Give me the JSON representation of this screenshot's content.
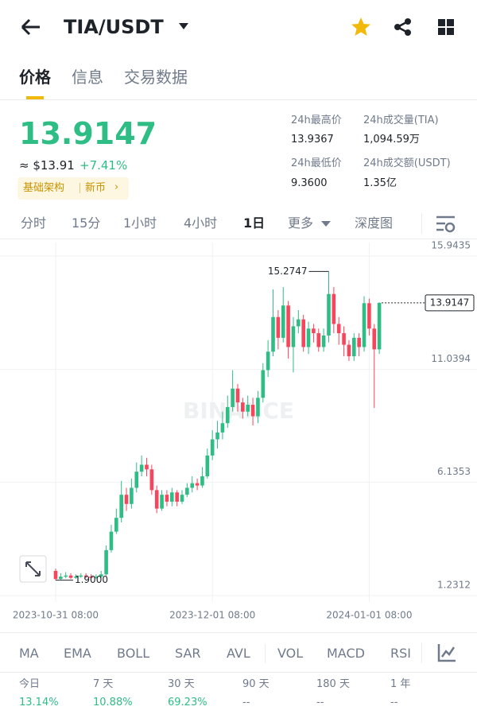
{
  "header": {
    "pair": "TIA/USDT"
  },
  "tabs": [
    "价格",
    "信息",
    "交易数据"
  ],
  "price": {
    "last": "13.9147",
    "approx": "≈ $13.91",
    "change": "+7.41%",
    "tags": [
      "基础架构",
      "新币"
    ]
  },
  "stats": [
    {
      "label": "24h最高价",
      "value": "13.9367"
    },
    {
      "label": "24h成交量(TIA)",
      "value": "1,094.59万"
    },
    {
      "label": "24h最低价",
      "value": "9.3600"
    },
    {
      "label": "24h成交额(USDT)",
      "value": "1.35亿"
    }
  ],
  "intervals": [
    "分时",
    "15分",
    "1小时",
    "4小时",
    "1日",
    "更多",
    "深度图"
  ],
  "chart_data": {
    "type": "candlestick",
    "watermark": "BINANCE",
    "up_color": "#2ebd85",
    "down_color": "#f6465d",
    "grid": true,
    "x": [
      0,
      1,
      2,
      3,
      4,
      5,
      6,
      7,
      8,
      9,
      10,
      11,
      12,
      13,
      14,
      15,
      16,
      17,
      18,
      19,
      20,
      21,
      22,
      23,
      24,
      25,
      26,
      27,
      28,
      29,
      30,
      31,
      32,
      33,
      34,
      35,
      36,
      37,
      38,
      39,
      40,
      41,
      42,
      43,
      44,
      45,
      46,
      47,
      48,
      49,
      50,
      51,
      52,
      53,
      54,
      55,
      56,
      57,
      58,
      59,
      60,
      61,
      62,
      63,
      64
    ],
    "open": [
      2.3,
      1.95,
      2.05,
      2.1,
      2.0,
      2.05,
      2.1,
      2.05,
      2.0,
      2.05,
      2.15,
      3.2,
      4.0,
      4.6,
      5.6,
      5.2,
      5.9,
      6.6,
      6.9,
      6.7,
      5.8,
      5.0,
      5.6,
      5.3,
      5.7,
      5.3,
      5.6,
      5.9,
      6.1,
      6.0,
      6.4,
      7.3,
      8.0,
      8.3,
      8.7,
      9.4,
      10.2,
      9.6,
      9.2,
      9.5,
      9.0,
      9.8,
      11.0,
      11.8,
      13.3,
      12.4,
      13.8,
      12.0,
      12.9,
      13.2,
      12.0,
      12.8,
      12.6,
      12.0,
      12.5,
      14.3,
      13.0,
      12.6,
      12.1,
      11.6,
      12.4,
      12.0,
      13.9,
      12.8,
      11.9
    ],
    "high": [
      2.4,
      2.2,
      2.25,
      2.2,
      2.15,
      2.2,
      2.2,
      2.15,
      2.15,
      2.3,
      3.4,
      4.3,
      5.0,
      6.2,
      5.9,
      6.3,
      7.0,
      7.3,
      7.2,
      6.9,
      6.0,
      5.8,
      5.8,
      5.9,
      5.8,
      5.8,
      6.1,
      6.4,
      6.3,
      6.8,
      7.6,
      8.4,
      8.8,
      9.2,
      9.9,
      11.0,
      10.4,
      9.8,
      9.9,
      9.8,
      10.1,
      11.3,
      12.3,
      14.5,
      13.6,
      14.6,
      14.0,
      13.3,
      13.6,
      13.4,
      13.1,
      13.0,
      12.8,
      12.8,
      15.2747,
      14.6,
      13.3,
      12.9,
      12.3,
      12.6,
      12.6,
      14.2,
      14.1,
      13.0,
      13.9367
    ],
    "low": [
      1.9,
      1.92,
      1.98,
      1.95,
      1.95,
      2.0,
      1.98,
      1.95,
      1.96,
      2.0,
      2.1,
      3.1,
      3.9,
      4.4,
      4.9,
      5.0,
      5.7,
      6.4,
      6.4,
      5.6,
      4.8,
      4.9,
      5.1,
      5.1,
      5.1,
      5.2,
      5.5,
      5.7,
      5.8,
      5.9,
      6.3,
      7.1,
      7.6,
      8.0,
      8.5,
      9.2,
      9.2,
      8.9,
      9.0,
      8.6,
      8.7,
      9.6,
      10.7,
      11.6,
      11.9,
      12.2,
      11.5,
      10.9,
      12.6,
      11.8,
      11.7,
      12.2,
      11.8,
      11.8,
      12.2,
      12.6,
      12.1,
      11.6,
      11.4,
      11.4,
      11.6,
      11.8,
      12.5,
      9.36,
      11.7
    ],
    "close": [
      1.95,
      2.05,
      2.1,
      2.0,
      2.05,
      2.1,
      2.05,
      2.0,
      2.05,
      2.15,
      3.2,
      4.0,
      4.6,
      5.6,
      5.2,
      5.9,
      6.6,
      6.9,
      6.7,
      5.8,
      5.0,
      5.6,
      5.3,
      5.7,
      5.3,
      5.6,
      5.9,
      6.1,
      6.0,
      6.4,
      7.3,
      8.0,
      8.3,
      8.7,
      9.4,
      10.2,
      9.6,
      9.2,
      9.5,
      9.0,
      9.8,
      11.0,
      11.8,
      13.3,
      12.4,
      13.8,
      12.0,
      12.9,
      13.2,
      12.0,
      12.8,
      12.6,
      12.0,
      12.5,
      14.3,
      13.0,
      12.6,
      12.1,
      11.6,
      12.4,
      12.0,
      13.9,
      12.8,
      11.9,
      13.9147
    ],
    "xlim": [
      -11,
      72
    ],
    "xticks": [
      {
        "value": 0,
        "label": "2023-10-31 08:00"
      },
      {
        "value": 31,
        "label": "2023-12-01 08:00"
      },
      {
        "value": 62,
        "label": "2024-01-01 08:00"
      }
    ],
    "ylim": [
      0.955,
      16.53
    ],
    "yticks": [
      1.2312,
      6.1353,
      11.0394,
      15.9435
    ],
    "annotations": {
      "max": {
        "value": 15.2747,
        "label": "15.2747"
      },
      "min": {
        "value": 1.9,
        "label": "1.9000"
      },
      "last": {
        "value": 13.9147,
        "label": "13.9147"
      }
    }
  },
  "indicators": [
    "MA",
    "EMA",
    "BOLL",
    "SAR",
    "AVL",
    "VOL",
    "MACD",
    "RSI"
  ],
  "performance": [
    {
      "period": "今日",
      "value": "13.14%"
    },
    {
      "period": "7 天",
      "value": "10.88%"
    },
    {
      "period": "30 天",
      "value": "69.23%"
    },
    {
      "period": "90 天",
      "value": "--"
    },
    {
      "period": "180 天",
      "value": "--"
    },
    {
      "period": "1 年",
      "value": "--"
    }
  ]
}
